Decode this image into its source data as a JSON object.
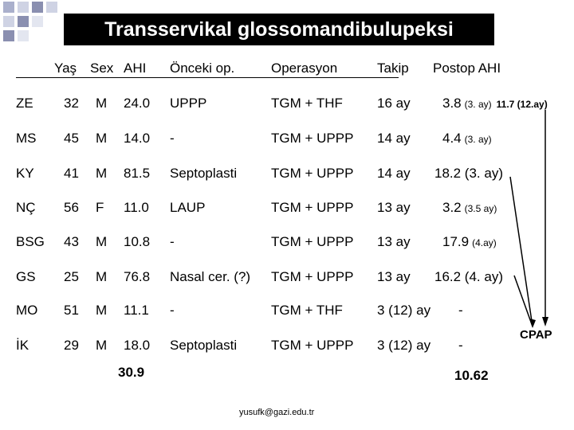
{
  "title": "Transservikal glossomandibulupeksi",
  "headers": {
    "age": "Yaş",
    "sex": "Sex",
    "ahi": "AHI",
    "prev_op": "Önceki op.",
    "operation": "Operasyon",
    "followup": "Takip",
    "postop_ahi": "Postop AHI"
  },
  "rows": [
    {
      "name": "ZE",
      "age": "32",
      "sex": "M",
      "ahi": "24.0",
      "prev_op": "UPPP",
      "operation": "TGM + THF",
      "followup": "16 ay",
      "postop_main": "3.8",
      "postop_note": "(3. ay)",
      "postop_extra": "11.7 (12.ay)"
    },
    {
      "name": "MS",
      "age": "45",
      "sex": "M",
      "ahi": "14.0",
      "prev_op": "-",
      "operation": "TGM + UPPP",
      "followup": "14 ay",
      "postop_main": "4.4",
      "postop_note": "(3. ay)",
      "postop_extra": ""
    },
    {
      "name": "KY",
      "age": "41",
      "sex": "M",
      "ahi": "81.5",
      "prev_op": "Septoplasti",
      "operation": "TGM + UPPP",
      "followup": "14 ay",
      "postop_main": "18.2 (3. ay)",
      "postop_note": "",
      "postop_extra": ""
    },
    {
      "name": "NÇ",
      "age": "56",
      "sex": "F",
      "ahi": "11.0",
      "prev_op": "LAUP",
      "operation": "TGM + UPPP",
      "followup": "13 ay",
      "postop_main": "3.2",
      "postop_note": "(3.5 ay)",
      "postop_extra": ""
    },
    {
      "name": "BSG",
      "age": "43",
      "sex": "M",
      "ahi": "10.8",
      "prev_op": "-",
      "operation": "TGM + UPPP",
      "followup": "13 ay",
      "postop_main": "17.9",
      "postop_note": "(4.ay)",
      "postop_extra": ""
    },
    {
      "name": "GS",
      "age": "25",
      "sex": "M",
      "ahi": "76.8",
      "prev_op": "Nasal cer. (?)",
      "operation": "TGM + UPPP",
      "followup": "13 ay",
      "postop_main": "16.2 (4. ay)",
      "postop_note": "",
      "postop_extra": ""
    },
    {
      "name": "MO",
      "age": "51",
      "sex": "M",
      "ahi": "11.1",
      "prev_op": "-",
      "operation": "TGM + THF",
      "followup": "3 (12) ay",
      "postop_main": "-",
      "postop_note": "",
      "postop_extra": ""
    },
    {
      "name": "İK",
      "age": "29",
      "sex": "M",
      "ahi": "18.0",
      "prev_op": "Septoplasti",
      "operation": "TGM + UPPP",
      "followup": "3  (12) ay",
      "postop_main": "-",
      "postop_note": "",
      "postop_extra": ""
    }
  ],
  "avg_ahi": "30.9",
  "avg_postop": "10.62",
  "cpap_label": "CPAP",
  "email": "yusufk@gazi.edu.tr",
  "colors": {
    "title_bg": "#000000",
    "title_fg": "#ffffff",
    "deco": "#8a8fb0"
  }
}
